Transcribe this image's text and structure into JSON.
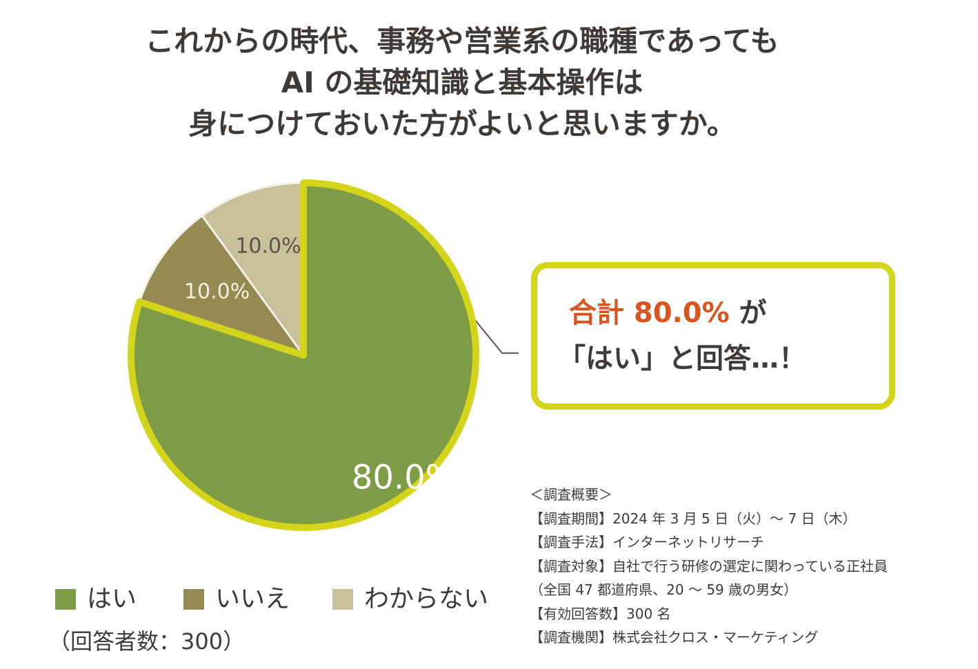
{
  "title_lines": [
    "これからの時代、事務や営業系の職種であっても",
    "AI の基礎知識と基本操作は",
    "身につけておいた方がよいと思いますか。"
  ],
  "callout": {
    "highlight": "合計 80.0%",
    "suffix": " が",
    "line2": "「はい」と回答…！"
  },
  "respondents": "（回答者数：300）",
  "survey": {
    "heading": "＜調査概要＞",
    "lines": [
      "【調査期間】2024 年 3 月 5 日（火）～ 7 日（木）",
      "【調査手法】インターネットリサーチ",
      "【調査対象】自社で行う研修の選定に関わっている正社員",
      "（全国 47 都道府県、20 ～ 59 歳の男女）",
      "【有効回答数】300 名",
      "【調査機関】株式会社クロス・マーケティング"
    ]
  },
  "colors": {
    "yes": "#7e9b45",
    "no": "#958b52",
    "unknown": "#c8c09a",
    "outline": "#d4d51a",
    "accent": "#d9541e",
    "text": "#3d3a38"
  },
  "chart_data": {
    "type": "pie",
    "title": "これからの時代、事務や営業系の職種であっても AI の基礎知識と基本操作は 身につけておいた方がよいと思いますか。",
    "categories": [
      "はい",
      "いいえ",
      "わからない"
    ],
    "values": [
      80.0,
      10.0,
      10.0
    ],
    "data_labels": [
      "80.0%",
      "10.0%",
      "10.0%"
    ],
    "colors": [
      "#7e9b45",
      "#958b52",
      "#c8c09a"
    ],
    "legend": "bottom-left",
    "start": "12 o'clock, clockwise"
  }
}
